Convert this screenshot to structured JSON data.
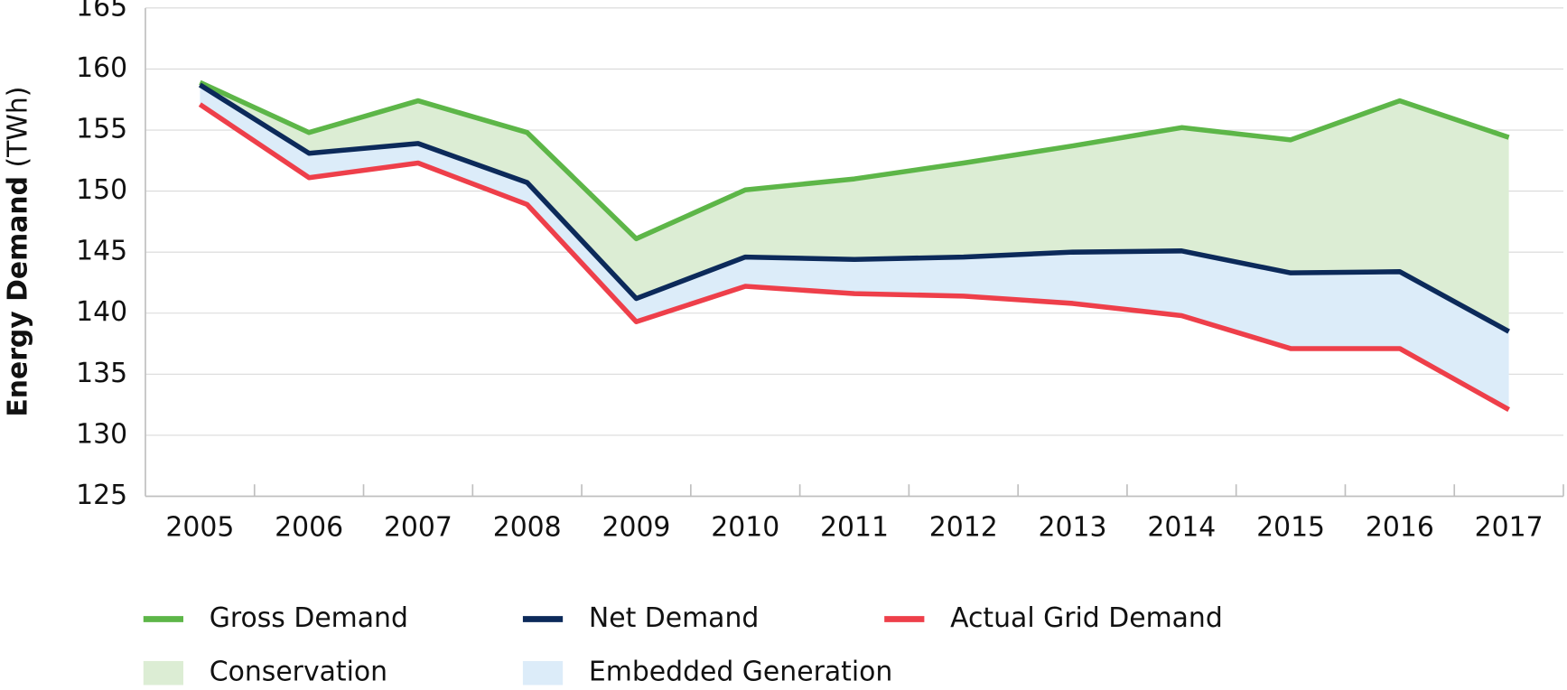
{
  "chart_data": {
    "type": "line",
    "y_label": "Energy Demand",
    "y_unit": "(TWh)",
    "categories": [
      "2005",
      "2006",
      "2007",
      "2008",
      "2009",
      "2010",
      "2011",
      "2012",
      "2013",
      "2014",
      "2015",
      "2016",
      "2017"
    ],
    "series": [
      {
        "name": "Gross Demand",
        "color": "#5db648",
        "values": [
          158.9,
          154.8,
          157.4,
          154.8,
          146.1,
          150.1,
          151.0,
          152.3,
          153.7,
          155.2,
          154.2,
          157.4,
          154.4
        ]
      },
      {
        "name": "Net Demand",
        "color": "#0c2a5a",
        "values": [
          158.7,
          153.1,
          153.9,
          150.7,
          141.2,
          144.6,
          144.4,
          144.6,
          145.0,
          145.1,
          143.3,
          143.4,
          138.5
        ]
      },
      {
        "name": "Actual Grid Demand",
        "color": "#ee3f4a",
        "values": [
          157.1,
          151.1,
          152.3,
          148.9,
          139.3,
          142.2,
          141.6,
          141.4,
          140.8,
          139.8,
          137.1,
          137.1,
          132.1
        ]
      }
    ],
    "areas": [
      {
        "name": "Conservation",
        "color": "#dcedd4"
      },
      {
        "name": "Embedded Generation",
        "color": "#dcecf9"
      }
    ],
    "ylim": [
      125,
      165
    ],
    "yticks": [
      125,
      130,
      135,
      140,
      145,
      150,
      155,
      160,
      165
    ],
    "grid": true
  }
}
